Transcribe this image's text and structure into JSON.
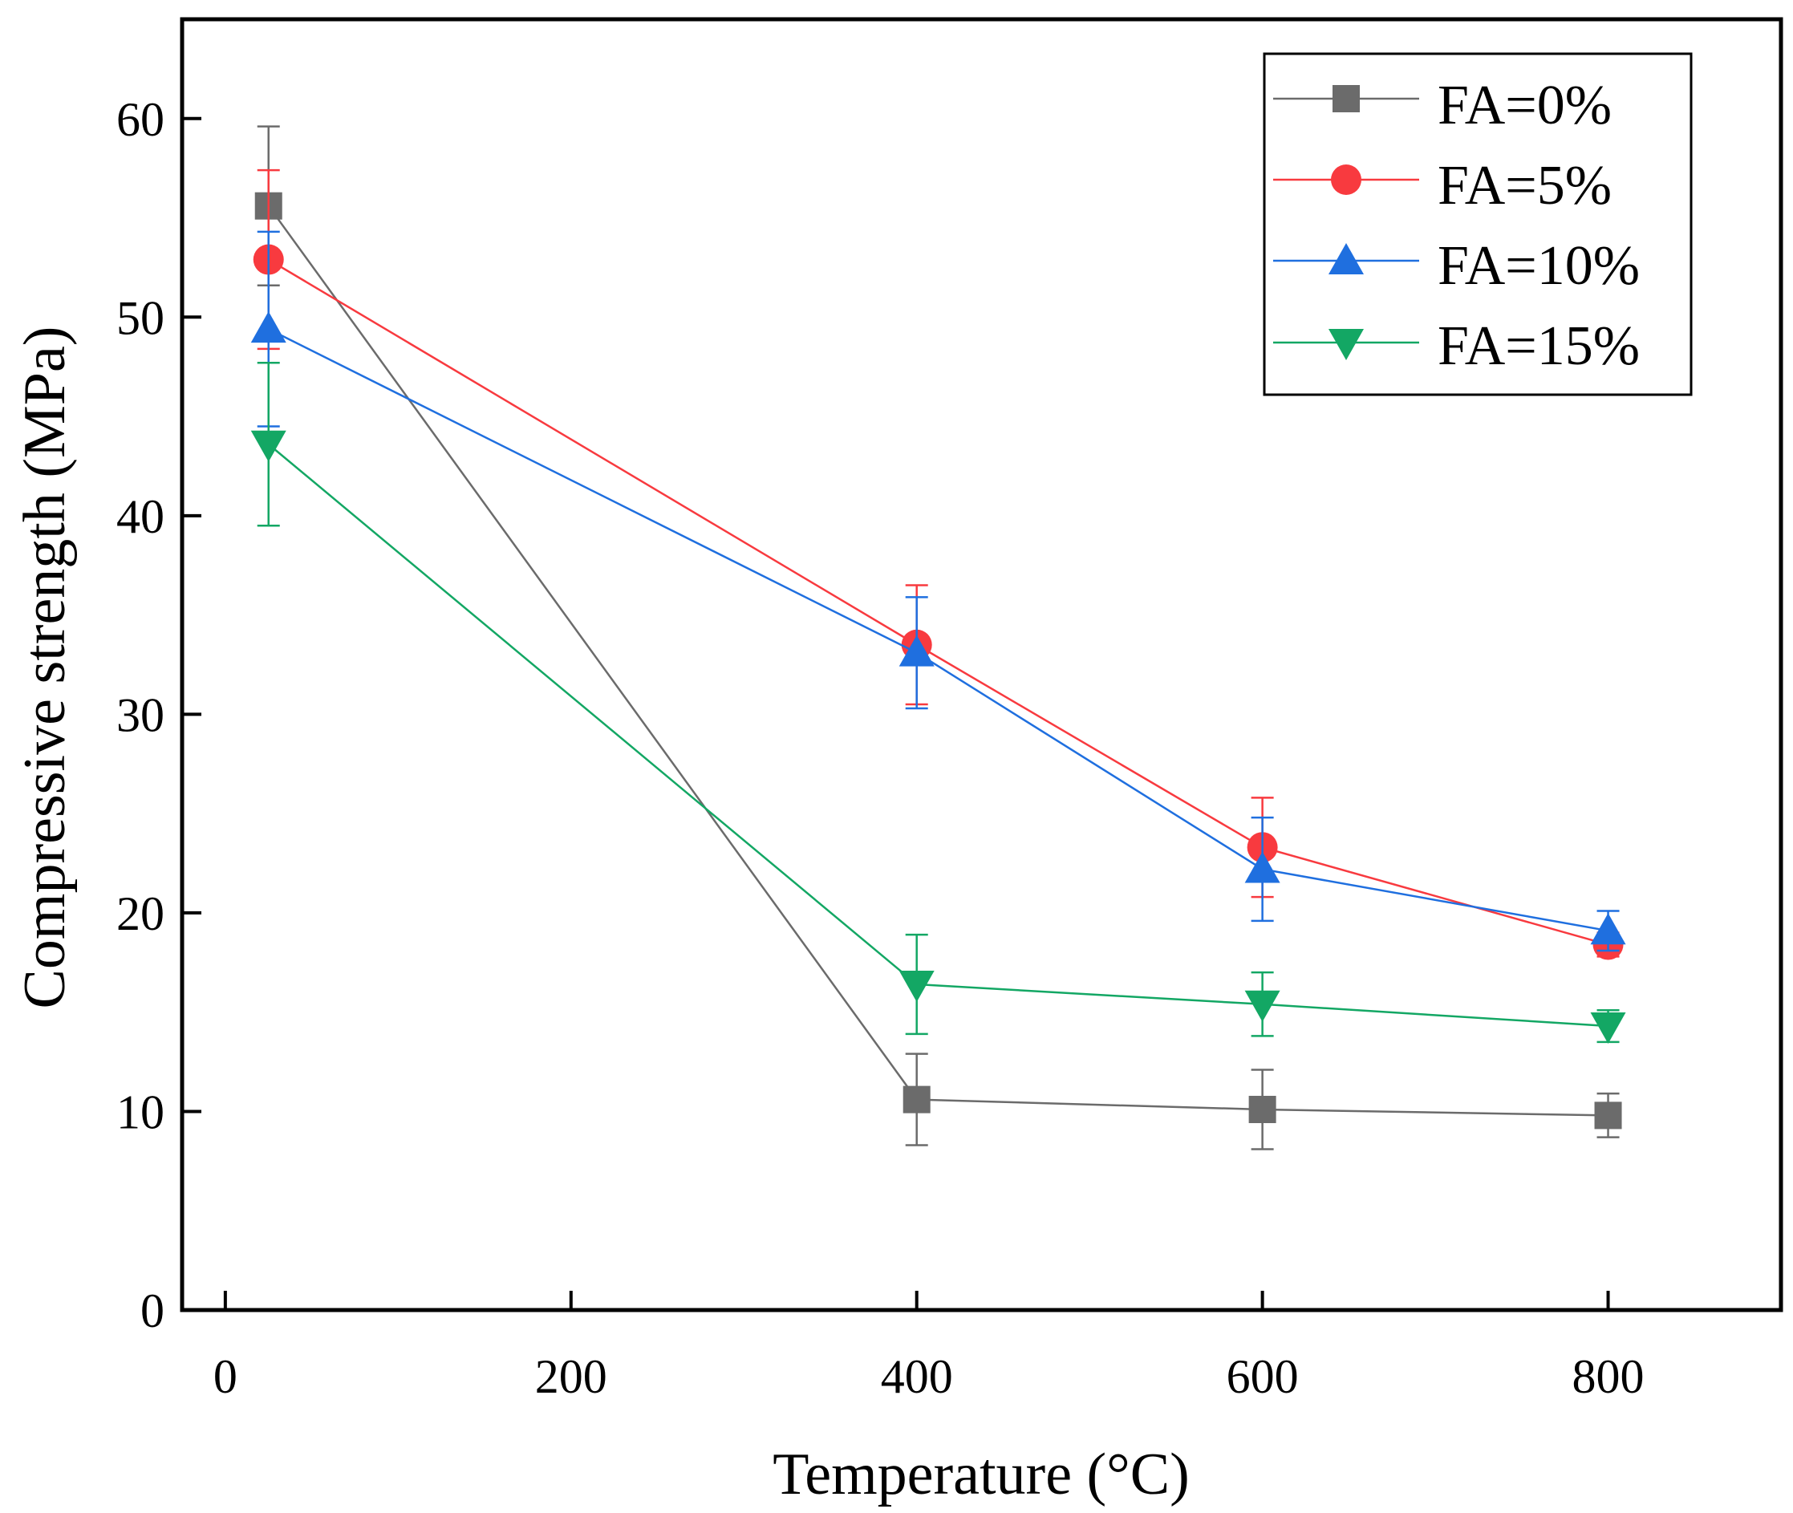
{
  "chart_data": {
    "type": "line",
    "title": "",
    "xlabel": "Temperature (°C)",
    "ylabel": "Compressive strength (MPa)",
    "xlim": [
      -25,
      900
    ],
    "ylim": [
      0,
      65
    ],
    "xticks": [
      0,
      200,
      400,
      600,
      800
    ],
    "yticks": [
      0,
      10,
      20,
      30,
      40,
      50,
      60
    ],
    "grid": false,
    "legend_position": "top-right",
    "x": [
      25,
      400,
      600,
      800
    ],
    "series": [
      {
        "name": "FA=0%",
        "color": "#6b6b6b",
        "marker": "square",
        "values": [
          55.6,
          10.6,
          10.1,
          9.8
        ],
        "errors": [
          4.0,
          2.3,
          2.0,
          1.1
        ]
      },
      {
        "name": "FA=5%",
        "color": "#f83a3f",
        "marker": "circle",
        "values": [
          52.9,
          33.5,
          23.3,
          18.4
        ],
        "errors": [
          4.5,
          3.0,
          2.5,
          0.6
        ]
      },
      {
        "name": "FA=10%",
        "color": "#1f6fdf",
        "marker": "triangle-up",
        "values": [
          49.4,
          33.1,
          22.2,
          19.1
        ],
        "errors": [
          4.9,
          2.8,
          2.6,
          1.0
        ]
      },
      {
        "name": "FA=15%",
        "color": "#13a764",
        "marker": "triangle-down",
        "values": [
          43.6,
          16.4,
          15.4,
          14.3
        ],
        "errors": [
          4.1,
          2.5,
          1.6,
          0.8
        ]
      }
    ]
  }
}
